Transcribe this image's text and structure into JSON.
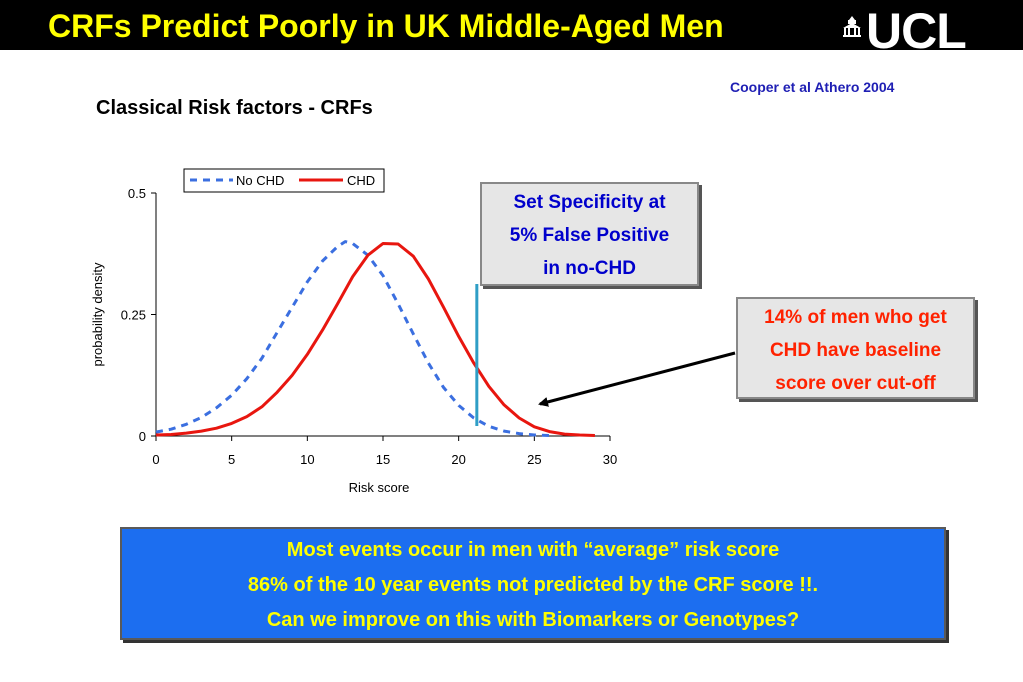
{
  "slide": {
    "title": "CRFs Predict Poorly in UK Middle-Aged Men",
    "logo": "UCL",
    "citation": "Cooper et al Athero 2004",
    "subtitle": "Classical Risk factors - CRFs"
  },
  "callouts": {
    "specificity": [
      "Set Specificity at",
      "5% False Positive",
      "in no-CHD"
    ],
    "chd_over_cutoff": [
      "14% of men who get",
      "CHD have baseline",
      "score over cut-off"
    ]
  },
  "bottom_box": {
    "lines": [
      "Most events occur in men with “average” risk score",
      "86% of the 10 year events not predicted by the CRF score !!.",
      "Can we improve on this with Biomarkers or Genotypes?"
    ]
  },
  "colors": {
    "title": "#ffff00",
    "no_chd": "#3b6fe0",
    "chd": "#e8160f",
    "cutoff": "#2f9ec6",
    "bottom_box": "#1c6ef0"
  },
  "chart_data": {
    "type": "line",
    "xlabel": "Risk score",
    "ylabel": "probability density",
    "xlim": [
      0,
      30
    ],
    "ylim": [
      0,
      0.5
    ],
    "xticks": [
      "0",
      "5",
      "10",
      "15",
      "20",
      "25",
      "30"
    ],
    "yticks": [
      "0",
      "0.25",
      "0.5"
    ],
    "legend_position": "top",
    "cutoff_x": 21.2,
    "series": [
      {
        "name": "No CHD",
        "style": "dashed",
        "x": [
          0,
          1,
          2,
          3,
          4,
          5,
          6,
          7,
          8,
          9,
          10,
          11,
          12,
          12.5,
          13,
          14,
          15,
          16,
          17,
          18,
          19,
          20,
          21,
          22,
          23,
          24,
          25,
          26
        ],
        "y": [
          0.008,
          0.014,
          0.024,
          0.038,
          0.058,
          0.084,
          0.118,
          0.16,
          0.213,
          0.265,
          0.317,
          0.36,
          0.39,
          0.4,
          0.396,
          0.372,
          0.33,
          0.272,
          0.21,
          0.15,
          0.1,
          0.063,
          0.037,
          0.02,
          0.01,
          0.005,
          0.002,
          0.001
        ]
      },
      {
        "name": "CHD",
        "style": "solid",
        "x": [
          0,
          1,
          2,
          3,
          4,
          5,
          6,
          7,
          8,
          9,
          10,
          11,
          12,
          13,
          14,
          15,
          16,
          17,
          18,
          19,
          20,
          21,
          22,
          23,
          24,
          25,
          26,
          27,
          28,
          29
        ],
        "y": [
          0.002,
          0.003,
          0.006,
          0.01,
          0.016,
          0.026,
          0.04,
          0.06,
          0.09,
          0.125,
          0.168,
          0.218,
          0.272,
          0.328,
          0.372,
          0.396,
          0.395,
          0.37,
          0.323,
          0.265,
          0.205,
          0.15,
          0.102,
          0.064,
          0.037,
          0.019,
          0.009,
          0.004,
          0.002,
          0.001
        ]
      }
    ]
  }
}
